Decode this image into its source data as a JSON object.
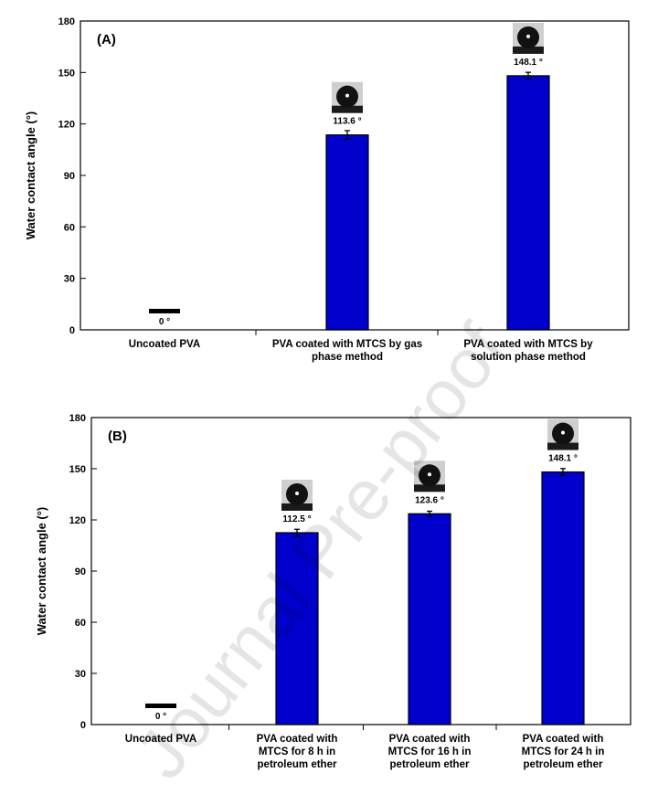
{
  "chart_data": [
    {
      "type": "bar",
      "panel_label": "(A)",
      "ylabel": "Water contact angle (°)",
      "xlabel": "",
      "ylim": [
        0,
        180
      ],
      "yticks": [
        0,
        30,
        60,
        90,
        120,
        150,
        180
      ],
      "categories": [
        [
          "Uncoated PVA"
        ],
        [
          "PVA coated with MTCS by gas",
          "phase method"
        ],
        [
          "PVA coated with MTCS by",
          "solution phase method"
        ]
      ],
      "values": [
        0,
        113.6,
        148.1
      ],
      "errors": [
        0,
        2.5,
        2.0
      ],
      "data_labels": [
        "0 °",
        "113.6 °",
        "148.1 °"
      ],
      "drop_images": [
        false,
        true,
        true
      ],
      "bar_color": "#0000cc",
      "grid": false
    },
    {
      "type": "bar",
      "panel_label": "(B)",
      "ylabel": "Water contact angle (°)",
      "xlabel": "",
      "ylim": [
        0,
        180
      ],
      "yticks": [
        0,
        30,
        60,
        90,
        120,
        150,
        180
      ],
      "categories": [
        [
          "Uncoated PVA"
        ],
        [
          "PVA coated with",
          "MTCS for 8 h in",
          "petroleum ether"
        ],
        [
          "PVA coated with",
          "MTCS for 16 h in",
          "petroleum ether"
        ],
        [
          "PVA coated with",
          "MTCS for 24 h in",
          "petroleum ether"
        ]
      ],
      "values": [
        0,
        112.5,
        123.6,
        148.1
      ],
      "errors": [
        0,
        2.0,
        1.5,
        2.0
      ],
      "data_labels": [
        "0 °",
        "112.5 °",
        "123.6 °",
        "148.1 °"
      ],
      "drop_images": [
        false,
        true,
        true,
        true
      ],
      "bar_color": "#0000cc",
      "grid": false
    }
  ],
  "watermark": "Journal Pre-proof"
}
